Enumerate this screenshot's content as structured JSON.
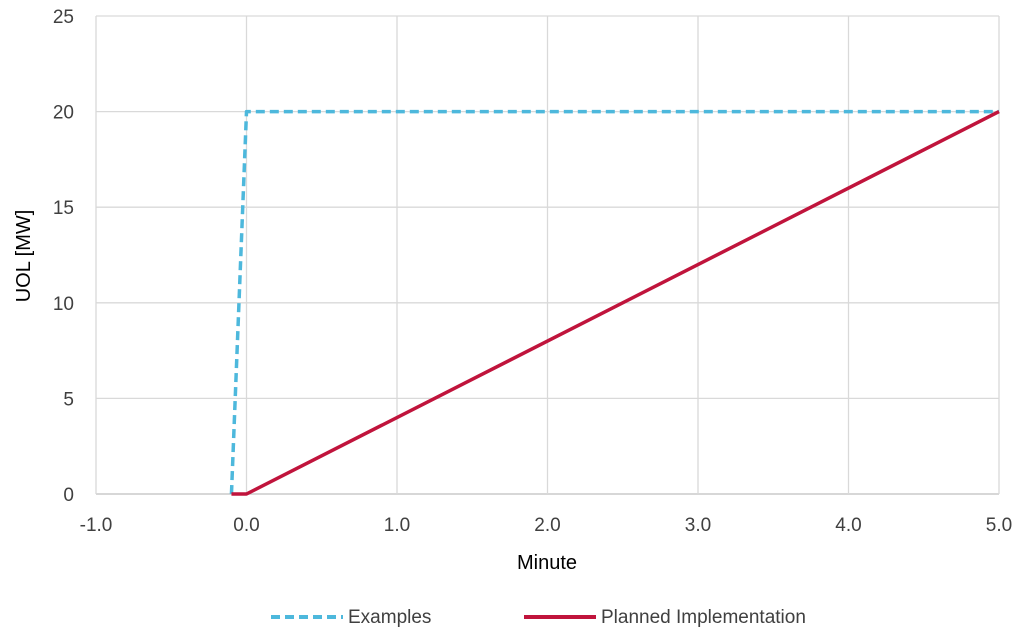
{
  "chart_data": {
    "type": "line",
    "xlabel": "Minute",
    "ylabel": "UOL [MW]",
    "xlim": [
      -1.0,
      5.0
    ],
    "ylim": [
      0,
      25
    ],
    "x_ticks": [
      "-1.0",
      "0.0",
      "1.0",
      "2.0",
      "3.0",
      "4.0",
      "5.0"
    ],
    "y_ticks": [
      "0",
      "5",
      "10",
      "15",
      "20",
      "25"
    ],
    "grid": true,
    "legend_position": "bottom",
    "series": [
      {
        "name": "Examples",
        "color": "#4db8dc",
        "style": "dashed",
        "points": [
          [
            -0.1,
            0
          ],
          [
            0.0,
            20
          ],
          [
            5.0,
            20
          ]
        ]
      },
      {
        "name": "Planned Implementation",
        "color": "#c0143c",
        "style": "solid",
        "points": [
          [
            -0.1,
            0
          ],
          [
            0.0,
            0
          ],
          [
            5.0,
            20
          ]
        ]
      }
    ]
  }
}
